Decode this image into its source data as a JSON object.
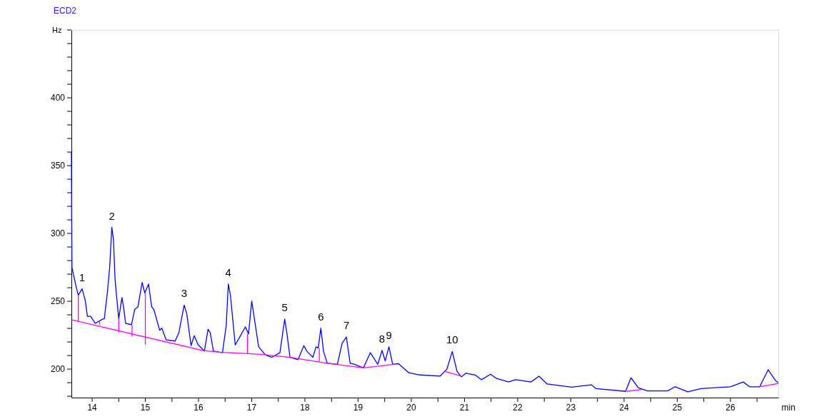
{
  "chart_data": {
    "type": "line",
    "title": "ECD2",
    "xlabel": "min",
    "ylabel": "Hz",
    "xlim": [
      13.61,
      26.9
    ],
    "ylim": [
      179,
      450
    ],
    "xticks": [
      14,
      {
        "value": 14.5,
        "label": null
      },
      15,
      {
        "value": 15.5,
        "label": null
      },
      16,
      {
        "value": 16.5,
        "label": null
      },
      17,
      {
        "value": 17.5,
        "label": null
      },
      18,
      {
        "value": 18.5,
        "label": null
      },
      19,
      {
        "value": 19.5,
        "label": null
      },
      20,
      {
        "value": 20.5,
        "label": null
      },
      21,
      {
        "value": 21.5,
        "label": null
      },
      22,
      {
        "value": 22.5,
        "label": null
      },
      23,
      {
        "value": 23.5,
        "label": null
      },
      24,
      {
        "value": 24.5,
        "label": null
      },
      25,
      {
        "value": 25.5,
        "label": null
      },
      26,
      {
        "value": 26.5,
        "label": null
      }
    ],
    "yticks": [
      {
        "value": 180,
        "label": null
      },
      {
        "value": 190,
        "label": null
      },
      200,
      {
        "value": 210,
        "label": null
      },
      {
        "value": 220,
        "label": null
      },
      {
        "value": 230,
        "label": null
      },
      {
        "value": 240,
        "label": null
      },
      250,
      {
        "value": 260,
        "label": null
      },
      {
        "value": 270,
        "label": null
      },
      {
        "value": 280,
        "label": null
      },
      {
        "value": 290,
        "label": null
      },
      300,
      {
        "value": 310,
        "label": null
      },
      {
        "value": 320,
        "label": null
      },
      {
        "value": 330,
        "label": null
      },
      {
        "value": 340,
        "label": null
      },
      350,
      {
        "value": 360,
        "label": null
      },
      {
        "value": 370,
        "label": null
      },
      {
        "value": 380,
        "label": null
      },
      {
        "value": 390,
        "label": null
      },
      400,
      {
        "value": 410,
        "label": null
      },
      {
        "value": 420,
        "label": null
      },
      {
        "value": 430,
        "label": null
      },
      {
        "value": 440,
        "label": null
      },
      {
        "value": 450,
        "label": null
      }
    ],
    "grid": false,
    "marker": "none",
    "line_style": "solid",
    "series": [
      {
        "color": "#0000ff",
        "x": [
          13.61,
          13.62,
          13.7,
          13.74,
          13.81,
          13.87,
          13.91,
          13.97,
          14.06,
          14.17,
          14.23,
          14.29,
          14.33,
          14.37,
          14.4,
          14.43,
          14.47,
          14.5,
          14.56,
          14.59,
          14.63,
          14.74,
          14.8,
          14.86,
          14.94,
          14.99,
          15.06,
          15.12,
          15.16,
          15.27,
          15.31,
          15.39,
          15.56,
          15.63,
          15.73,
          15.78,
          15.86,
          15.92,
          15.99,
          16.11,
          16.18,
          16.22,
          16.28,
          16.45,
          16.52,
          16.56,
          16.6,
          16.69,
          16.77,
          16.88,
          16.94,
          17.0,
          17.05,
          17.13,
          17.26,
          17.38,
          17.53,
          17.62,
          17.66,
          17.72,
          17.87,
          17.98,
          18.04,
          18.15,
          18.21,
          18.25,
          18.3,
          18.35,
          18.42,
          18.61,
          18.7,
          18.78,
          18.85,
          18.93,
          19.1,
          19.23,
          19.37,
          19.45,
          19.51,
          19.58,
          19.65,
          19.76,
          19.95,
          20.16,
          20.54,
          20.67,
          20.77,
          20.86,
          20.94,
          21.03,
          21.2,
          21.32,
          21.49,
          21.6,
          21.83,
          21.96,
          22.25,
          22.4,
          22.55,
          23.01,
          23.39,
          23.47,
          24.03,
          24.13,
          24.27,
          24.44,
          24.82,
          24.96,
          25.2,
          25.45,
          26.0,
          26.24,
          26.36,
          26.55,
          26.71,
          26.85,
          26.9
        ],
        "values": [
          360,
          275,
          260.5,
          254.4,
          259.2,
          250.9,
          238.9,
          238.9,
          233.7,
          236.3,
          237.3,
          257.9,
          275.1,
          304.5,
          295.9,
          266.5,
          249.2,
          237.2,
          252.7,
          245.8,
          233.7,
          232.8,
          244,
          245.8,
          263.9,
          256.1,
          262.7,
          245.8,
          244,
          228.5,
          230.2,
          221.6,
          220.7,
          226.8,
          247.2,
          240.6,
          217.3,
          224.7,
          218.1,
          213.3,
          229.4,
          226.8,
          213.3,
          212.1,
          231.9,
          262.7,
          254.4,
          217.8,
          223.3,
          231.1,
          225.9,
          250.1,
          237.2,
          216.4,
          210.4,
          208.7,
          212.1,
          236.8,
          226.8,
          208.7,
          206.9,
          217.3,
          213.0,
          208.7,
          216.4,
          215.5,
          230.2,
          213.0,
          204.3,
          203.5,
          219.0,
          223.7,
          204.3,
          203.5,
          200.9,
          212.1,
          203.5,
          213.8,
          206.0,
          216.4,
          203.5,
          204.0,
          197.4,
          195.7,
          194.8,
          200.0,
          213.0,
          198.3,
          194.3,
          197.0,
          195.7,
          192.2,
          196.2,
          193.1,
          190.5,
          192.2,
          190.5,
          194.8,
          189.1,
          186.7,
          188.4,
          185.6,
          183.6,
          193.6,
          186.2,
          183.9,
          183.9,
          187.0,
          183.3,
          185.6,
          187.0,
          190.5,
          187.0,
          187.0,
          199.5,
          191.4,
          190
        ]
      },
      {
        "color": "#ff00ff",
        "x": [
          13.62,
          16.07,
          16.4,
          17.17,
          17.53,
          17.72,
          18.42,
          18.63,
          19.1,
          19.68
        ],
        "values": [
          236.3,
          213.8,
          212.5,
          210.9,
          209.5,
          208.7,
          204.3,
          203.3,
          200.9,
          203.5
        ]
      },
      {
        "color": "#ff00ff",
        "x": [
          20.63,
          20.94
        ],
        "values": [
          198.3,
          194.8
        ]
      },
      {
        "color": "#ff00ff",
        "x": [
          24.05,
          24.33
        ],
        "values": [
          183.6,
          185.0
        ]
      },
      {
        "color": "#ff00ff",
        "x": [
          26.54,
          26.9
        ],
        "values": [
          187.0,
          189.5
        ]
      },
      {
        "color": "#ff00ff",
        "x": [
          13.74,
          13.74
        ],
        "values": [
          234.9,
          254.4
        ]
      },
      {
        "color": "#ff00ff",
        "x": [
          14.14,
          14.14
        ],
        "values": [
          232.5,
          236.0
        ]
      },
      {
        "color": "#ff00ff",
        "x": [
          14.5,
          14.5
        ],
        "values": [
          227.0,
          237.2
        ]
      },
      {
        "color": "#ff00ff",
        "x": [
          14.75,
          14.75
        ],
        "values": [
          224.0,
          232.4
        ]
      },
      {
        "color": "#ff00ff",
        "x": [
          15.0,
          15.0
        ],
        "values": [
          218.0,
          256.1
        ]
      },
      {
        "color": "#ff00ff",
        "x": [
          16.92,
          16.92
        ],
        "values": [
          211.5,
          225.9
        ]
      },
      {
        "color": "#ff00ff",
        "x": [
          18.27,
          18.27
        ],
        "values": [
          205.6,
          215.5
        ]
      }
    ],
    "annotations": [
      {
        "text": "1",
        "x": 13.81,
        "y": 259.2
      },
      {
        "text": "2",
        "x": 14.37,
        "y": 304.5
      },
      {
        "text": "3",
        "x": 15.73,
        "y": 247.2
      },
      {
        "text": "4",
        "x": 16.56,
        "y": 262.7
      },
      {
        "text": "5",
        "x": 17.62,
        "y": 236.8
      },
      {
        "text": "6",
        "x": 18.3,
        "y": 230.2
      },
      {
        "text": "7",
        "x": 18.78,
        "y": 223.7
      },
      {
        "text": "8",
        "x": 19.45,
        "y": 213.8
      },
      {
        "text": "9",
        "x": 19.58,
        "y": 216.4
      },
      {
        "text": "10",
        "x": 20.77,
        "y": 213.0
      }
    ]
  }
}
